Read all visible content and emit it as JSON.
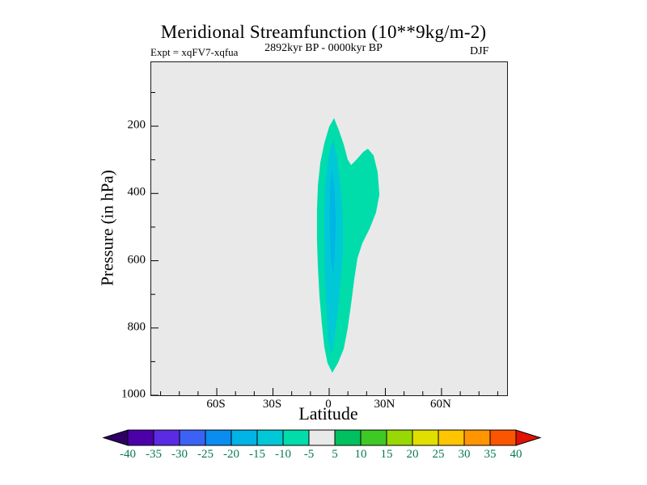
{
  "title": "Meridional Streamfunction (10**9kg/m-2)",
  "header": {
    "experiment": "Expt = xqFV7-xqfua",
    "period": "2892kyr BP - 0000kyr BP",
    "season": "DJF"
  },
  "colorbar": {
    "labels": [
      "-40",
      "-35",
      "-30",
      "-25",
      "-20",
      "-15",
      "-10",
      "-5",
      "5",
      "10",
      "15",
      "20",
      "25",
      "30",
      "35",
      "40"
    ],
    "colors": [
      "#2e0066",
      "#4c00aa",
      "#5a2be2",
      "#3b62f5",
      "#0a8cf0",
      "#00b4e6",
      "#00c8d7",
      "#00dcaa",
      "#e9e9e9",
      "#00c060",
      "#3ec925",
      "#97d805",
      "#e0df00",
      "#fec500",
      "#ff9500",
      "#fa5500",
      "#df1200"
    ],
    "label_color": "#077a55"
  },
  "chart_data": {
    "type": "filled-contour",
    "title": "Meridional Streamfunction (10**9kg/m-2)",
    "subtitle": "2892kyr BP - 0000kyr BP",
    "experiment": "Expt = xqFV7-xqfua",
    "season": "DJF",
    "units": "10**9 kg/m-2",
    "background_fill": "#e9e9e9",
    "contour_levels": [
      -40,
      -35,
      -30,
      -25,
      -20,
      -15,
      -10,
      -5,
      5,
      10,
      15,
      20,
      25,
      30,
      35,
      40
    ],
    "x_axis": {
      "label": "Latitude",
      "range": [
        -95,
        95
      ],
      "minor_step": 10,
      "ticks": [
        {
          "value": -60,
          "label": "60S"
        },
        {
          "value": -30,
          "label": "30S"
        },
        {
          "value": 0,
          "label": "0"
        },
        {
          "value": 30,
          "label": "30N"
        },
        {
          "value": 60,
          "label": "60N"
        }
      ]
    },
    "y_axis": {
      "label": "Pressure (in hPa)",
      "range": [
        10,
        1000
      ],
      "orientation": "1000 hPa at bottom",
      "minor": [
        100,
        300,
        500,
        700,
        900
      ],
      "ticks": [
        {
          "value": 200,
          "label": "200"
        },
        {
          "value": 400,
          "label": "400"
        },
        {
          "value": 600,
          "label": "600"
        },
        {
          "value": 800,
          "label": "800"
        },
        {
          "value": 1000,
          "label": "1000"
        }
      ]
    },
    "contours": [
      {
        "level": -5,
        "fill_band": "-10 to -5",
        "color": "#00dcaa",
        "points_lat_hpa": [
          [
            2.6,
            176
          ],
          [
            5.2,
            212
          ],
          [
            7.8,
            255
          ],
          [
            9.9,
            299
          ],
          [
            11.7,
            316
          ],
          [
            14.7,
            299
          ],
          [
            18.1,
            277
          ],
          [
            20.7,
            267
          ],
          [
            23.7,
            287
          ],
          [
            25.9,
            337
          ],
          [
            26.8,
            404
          ],
          [
            25.0,
            457
          ],
          [
            21.6,
            505
          ],
          [
            17.7,
            548
          ],
          [
            15.1,
            592
          ],
          [
            13.4,
            656
          ],
          [
            11.7,
            729
          ],
          [
            9.9,
            801
          ],
          [
            7.8,
            861
          ],
          [
            4.7,
            904
          ],
          [
            1.7,
            933
          ],
          [
            -0.9,
            904
          ],
          [
            -2.6,
            856
          ],
          [
            -3.9,
            789
          ],
          [
            -5.2,
            705
          ],
          [
            -6.0,
            620
          ],
          [
            -6.5,
            536
          ],
          [
            -6.5,
            452
          ],
          [
            -6.0,
            375
          ],
          [
            -4.7,
            308
          ],
          [
            -2.6,
            251
          ],
          [
            0.0,
            202
          ]
        ]
      },
      {
        "level": -10,
        "fill_band": "-15 to -10",
        "color": "#00c8d7",
        "points_lat_hpa": [
          [
            2.2,
            241
          ],
          [
            4.3,
            296
          ],
          [
            6.0,
            380
          ],
          [
            7.3,
            476
          ],
          [
            7.3,
            572
          ],
          [
            6.0,
            668
          ],
          [
            4.3,
            765
          ],
          [
            2.6,
            837
          ],
          [
            1.3,
            880
          ],
          [
            -0.4,
            837
          ],
          [
            -1.3,
            753
          ],
          [
            -2.2,
            657
          ],
          [
            -2.6,
            560
          ],
          [
            -2.6,
            464
          ],
          [
            -2.2,
            380
          ],
          [
            -0.9,
            308
          ],
          [
            0.9,
            260
          ]
        ]
      },
      {
        "level": -15,
        "fill_band": "-20 to -15",
        "color": "#00b4e6",
        "points_lat_hpa": [
          [
            1.7,
            332
          ],
          [
            3.0,
            404
          ],
          [
            3.5,
            488
          ],
          [
            3.0,
            572
          ],
          [
            2.2,
            644
          ],
          [
            0.9,
            596
          ],
          [
            0.4,
            500
          ],
          [
            0.4,
            416
          ],
          [
            0.9,
            356
          ]
        ]
      }
    ]
  }
}
